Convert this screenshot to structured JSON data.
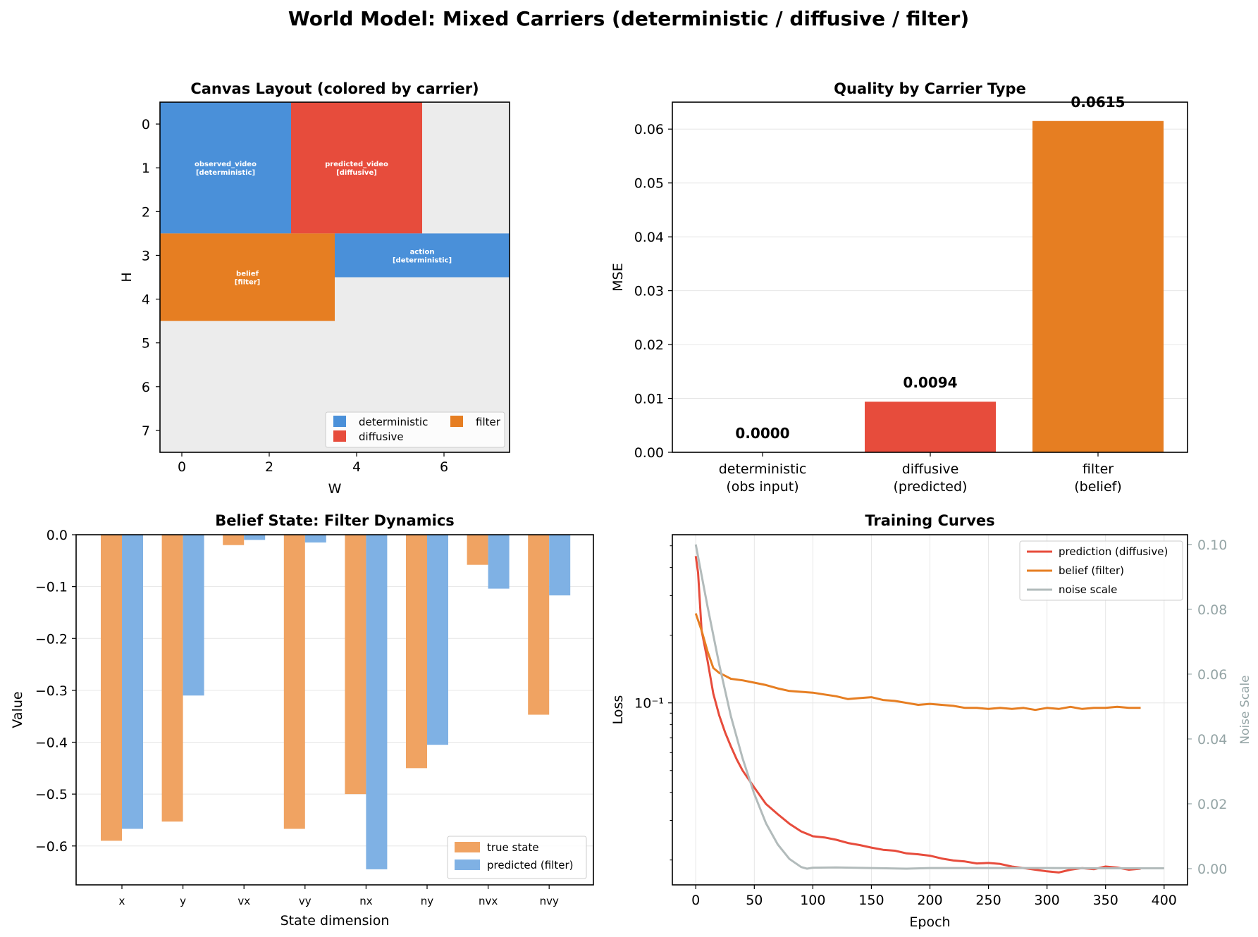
{
  "title": "World Model: Mixed Carriers (deterministic / diffusive / filter)",
  "colors": {
    "deterministic": "#4a90d9",
    "diffusive": "#e74c3c",
    "filter": "#e67e22",
    "empty": "#ececec",
    "noise": "#b2bbbb",
    "noise_axis": "#95a5a6",
    "true_state": "#f0a362",
    "predicted": "#7fb1e4"
  },
  "chart_data": [
    {
      "type": "heatmap",
      "title": "Canvas Layout (colored by carrier)",
      "xlabel": "W",
      "ylabel": "H",
      "xlim": [
        -0.5,
        7.5
      ],
      "ylim": [
        7.5,
        -0.5
      ],
      "xticks": [
        0,
        2,
        4,
        6
      ],
      "yticks": [
        0,
        1,
        2,
        3,
        4,
        5,
        6,
        7
      ],
      "regions": [
        {
          "name": "observed_video",
          "carrier": "deterministic",
          "label": "observed_video",
          "tag": "[deterministic]",
          "w0": 0,
          "w1": 3,
          "h0": 0,
          "h1": 3
        },
        {
          "name": "predicted_video",
          "carrier": "diffusive",
          "label": "predicted_video",
          "tag": "[diffusive]",
          "w0": 3,
          "w1": 6,
          "h0": 0,
          "h1": 3
        },
        {
          "name": "belief",
          "carrier": "filter",
          "label": "belief",
          "tag": "[filter]",
          "w0": 0,
          "w1": 4,
          "h0": 3,
          "h1": 5
        },
        {
          "name": "action",
          "carrier": "deterministic",
          "label": "action",
          "tag": "[deterministic]",
          "w0": 4,
          "w1": 8,
          "h0": 3,
          "h1": 4
        }
      ],
      "legend": {
        "position": "lower right",
        "items": [
          "deterministic",
          "diffusive",
          "filter"
        ]
      }
    },
    {
      "type": "bar",
      "title": "Quality by Carrier Type",
      "ylabel": "MSE",
      "xlabel": "",
      "categories": [
        {
          "line1": "deterministic",
          "line2": "(obs input)",
          "carrier": "deterministic"
        },
        {
          "line1": "diffusive",
          "line2": "(predicted)",
          "carrier": "diffusive"
        },
        {
          "line1": "filter",
          "line2": "(belief)",
          "carrier": "filter"
        }
      ],
      "values": [
        0.0,
        0.0094,
        0.0615
      ],
      "value_labels": [
        "0.0000",
        "0.0094",
        "0.0615"
      ],
      "ylim": [
        0,
        0.065
      ],
      "yticks": [
        "0.00",
        "0.01",
        "0.02",
        "0.03",
        "0.04",
        "0.05",
        "0.06"
      ]
    },
    {
      "type": "bar",
      "title": "Belief State: Filter Dynamics",
      "xlabel": "State dimension",
      "ylabel": "Value",
      "categories": [
        "x",
        "y",
        "vx",
        "vy",
        "nx",
        "ny",
        "nvx",
        "nvy"
      ],
      "series": [
        {
          "name": "true state",
          "values": [
            -0.59,
            -0.553,
            -0.02,
            -0.567,
            -0.5,
            -0.45,
            -0.058,
            -0.347
          ]
        },
        {
          "name": "predicted (filter)",
          "values": [
            -0.567,
            -0.31,
            -0.01,
            -0.015,
            -0.645,
            -0.405,
            -0.104,
            -0.117
          ]
        }
      ],
      "ylim": [
        -0.675,
        0.0
      ],
      "yticks": [
        "0.0",
        "−0.1",
        "−0.2",
        "−0.3",
        "−0.4",
        "−0.5",
        "−0.6"
      ],
      "legend": {
        "position": "lower right",
        "items": [
          "true state",
          "predicted (filter)"
        ]
      }
    },
    {
      "type": "line",
      "title": "Training Curves",
      "xlabel": "Epoch",
      "ylabel": "Loss",
      "y2label": "Noise Scale",
      "xlim": [
        -20,
        420
      ],
      "xticks": [
        0,
        50,
        100,
        150,
        200,
        250,
        300,
        350,
        400
      ],
      "yscale": "log",
      "ylim": [
        0.0155,
        0.56
      ],
      "ytick_label": "10⁻¹",
      "y2lim": [
        -0.005,
        0.103
      ],
      "y2ticks": [
        "0.00",
        "0.02",
        "0.04",
        "0.06",
        "0.08",
        "0.10"
      ],
      "series": [
        {
          "name": "prediction (diffusive)",
          "axis": "left",
          "x": [
            0,
            2,
            5,
            10,
            15,
            20,
            25,
            30,
            35,
            40,
            50,
            60,
            70,
            80,
            90,
            100,
            110,
            120,
            130,
            140,
            150,
            160,
            170,
            180,
            190,
            200,
            210,
            220,
            230,
            240,
            250,
            260,
            270,
            280,
            290,
            300,
            310,
            320,
            330,
            340,
            350,
            360,
            370,
            380
          ],
          "y": [
            0.45,
            0.38,
            0.21,
            0.155,
            0.11,
            0.088,
            0.074,
            0.064,
            0.056,
            0.05,
            0.042,
            0.0355,
            0.032,
            0.029,
            0.0268,
            0.0255,
            0.0252,
            0.0246,
            0.0238,
            0.0233,
            0.0227,
            0.0222,
            0.022,
            0.0214,
            0.0212,
            0.0209,
            0.0203,
            0.0199,
            0.0197,
            0.0193,
            0.0194,
            0.0192,
            0.0187,
            0.0184,
            0.0181,
            0.0178,
            0.0176,
            0.0181,
            0.0184,
            0.0182,
            0.0187,
            0.0185,
            0.0181,
            0.0183
          ]
        },
        {
          "name": "belief (filter)",
          "axis": "left",
          "x": [
            0,
            5,
            10,
            15,
            20,
            25,
            30,
            40,
            50,
            60,
            70,
            80,
            90,
            100,
            110,
            120,
            130,
            140,
            150,
            160,
            170,
            180,
            190,
            200,
            210,
            220,
            230,
            240,
            250,
            260,
            270,
            280,
            290,
            300,
            310,
            320,
            330,
            340,
            350,
            360,
            370,
            380
          ],
          "y": [
            0.25,
            0.21,
            0.17,
            0.143,
            0.136,
            0.132,
            0.128,
            0.126,
            0.123,
            0.12,
            0.116,
            0.113,
            0.112,
            0.111,
            0.109,
            0.107,
            0.104,
            0.105,
            0.106,
            0.103,
            0.102,
            0.1,
            0.098,
            0.099,
            0.098,
            0.097,
            0.095,
            0.095,
            0.094,
            0.095,
            0.094,
            0.095,
            0.093,
            0.095,
            0.094,
            0.096,
            0.094,
            0.095,
            0.095,
            0.096,
            0.095,
            0.095
          ]
        },
        {
          "name": "noise scale",
          "axis": "right",
          "x": [
            0,
            10,
            20,
            30,
            40,
            50,
            60,
            70,
            80,
            90,
            95,
            100,
            120,
            150,
            180,
            200,
            250,
            300,
            350,
            400
          ],
          "y": [
            0.1,
            0.081,
            0.063,
            0.047,
            0.034,
            0.023,
            0.014,
            0.0075,
            0.003,
            0.0005,
            0.0,
            0.0003,
            0.0004,
            0.0002,
            0.0,
            0.0002,
            0.0002,
            0.0002,
            0.0001,
            0.0001
          ]
        }
      ],
      "legend": {
        "position": "upper right",
        "items": [
          "prediction (diffusive)",
          "belief (filter)",
          "noise scale"
        ]
      }
    }
  ]
}
